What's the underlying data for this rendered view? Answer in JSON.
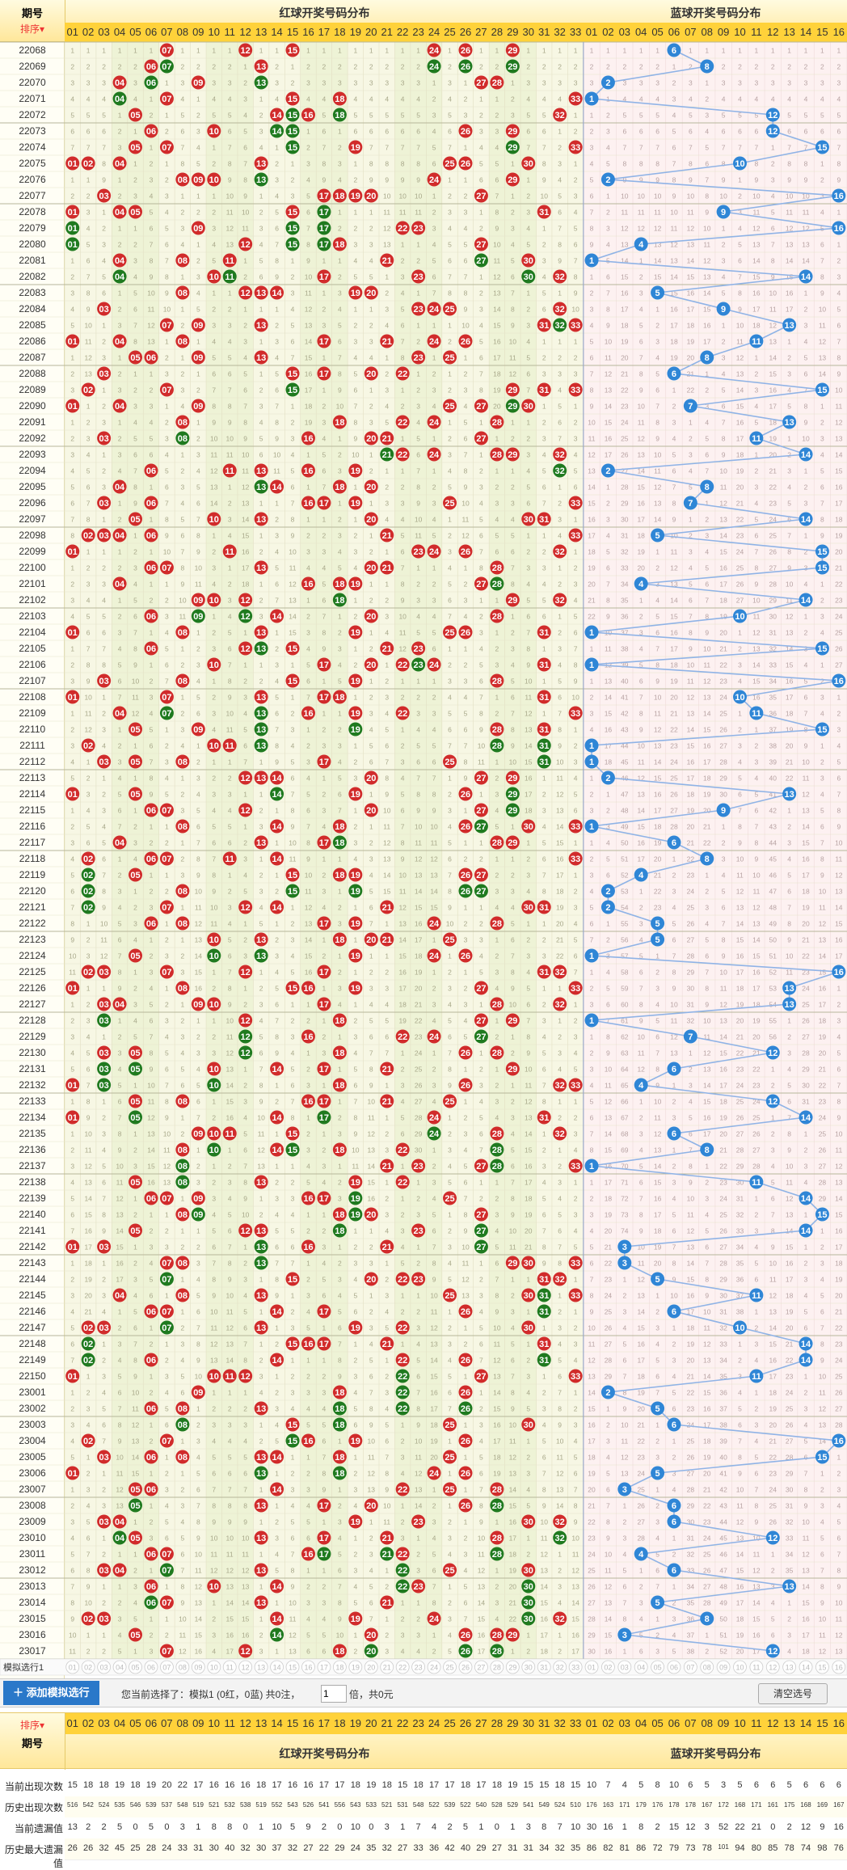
{
  "header": {
    "period_label": "期号",
    "sort_label": "排序",
    "red_title": "红球开奖号码分布",
    "blue_title": "蓝球开奖号码分布"
  },
  "red_numbers": [
    "01",
    "02",
    "03",
    "04",
    "05",
    "06",
    "07",
    "08",
    "09",
    "10",
    "11",
    "12",
    "13",
    "14",
    "15",
    "16",
    "17",
    "18",
    "19",
    "20",
    "21",
    "22",
    "23",
    "24",
    "25",
    "26",
    "27",
    "28",
    "29",
    "30",
    "31",
    "32",
    "33"
  ],
  "blue_numbers": [
    "01",
    "02",
    "03",
    "04",
    "05",
    "06",
    "07",
    "08",
    "09",
    "10",
    "11",
    "12",
    "13",
    "14",
    "15",
    "16"
  ],
  "colors": {
    "red_ball": "#d12b2b",
    "green_ball": "#1f7a1f",
    "blue_ball": "#2f86d6",
    "header_yellow": "#ffd23a"
  },
  "draws": [
    {
      "p": "22068",
      "r": [
        7,
        12,
        15,
        24,
        26,
        29
      ],
      "b": 6
    },
    {
      "p": "22069",
      "r": [
        6,
        7,
        13,
        24,
        26,
        29
      ],
      "b": 8
    },
    {
      "p": "22070",
      "r": [
        4,
        6,
        9,
        13,
        27,
        28
      ],
      "b": 2
    },
    {
      "p": "22071",
      "r": [
        4,
        7,
        15,
        18,
        33
      ],
      "b": 1
    },
    {
      "p": "22072",
      "r": [
        5,
        14,
        15,
        16,
        18,
        32
      ],
      "b": 12
    },
    {
      "p": "22073",
      "r": [
        6,
        10,
        14,
        15,
        26,
        29
      ],
      "b": 12
    },
    {
      "p": "22074",
      "r": [
        5,
        7,
        15,
        19,
        29,
        33
      ],
      "b": 15
    },
    {
      "p": "22075",
      "r": [
        1,
        2,
        4,
        13,
        25,
        26,
        30
      ],
      "b": 10
    },
    {
      "p": "22076",
      "r": [
        8,
        9,
        10,
        13,
        24,
        29
      ],
      "b": 2
    },
    {
      "p": "22077",
      "r": [
        3,
        17,
        18,
        19,
        20,
        27
      ],
      "b": 16
    },
    {
      "p": "22078",
      "r": [
        1,
        4,
        5,
        15,
        17,
        31
      ],
      "b": 9
    },
    {
      "p": "22079",
      "r": [
        1,
        9,
        15,
        17,
        22,
        23
      ],
      "b": 16
    },
    {
      "p": "22080",
      "r": [
        1,
        12,
        15,
        17,
        18,
        27
      ],
      "b": 4
    },
    {
      "p": "22081",
      "r": [
        4,
        8,
        11,
        21,
        27,
        30
      ],
      "b": 1
    },
    {
      "p": "22082",
      "r": [
        4,
        10,
        11,
        17,
        23,
        30,
        32
      ],
      "b": 14
    },
    {
      "p": "22083",
      "r": [
        8,
        12,
        13,
        14,
        19,
        20
      ],
      "b": 5
    },
    {
      "p": "22084",
      "r": [
        3,
        23,
        24,
        25,
        32
      ],
      "b": 9
    },
    {
      "p": "22085",
      "r": [
        7,
        9,
        13,
        31,
        32,
        33
      ],
      "b": 13
    },
    {
      "p": "22086",
      "r": [
        1,
        4,
        8,
        17,
        21,
        24,
        26
      ],
      "b": 11
    },
    {
      "p": "22087",
      "r": [
        5,
        6,
        9,
        13,
        23,
        25
      ],
      "b": 8
    },
    {
      "p": "22088",
      "r": [
        3,
        15,
        17,
        20,
        22
      ],
      "b": 6
    },
    {
      "p": "22089",
      "r": [
        2,
        7,
        15,
        29,
        31,
        33
      ],
      "b": 15
    },
    {
      "p": "22090",
      "r": [
        1,
        4,
        9,
        25,
        27,
        29,
        30
      ],
      "b": 7
    },
    {
      "p": "22091",
      "r": [
        8,
        18,
        22,
        24,
        28
      ],
      "b": 13
    },
    {
      "p": "22092",
      "r": [
        3,
        8,
        16,
        20,
        21,
        27
      ],
      "b": 11
    },
    {
      "p": "22093",
      "r": [
        21,
        22,
        24,
        28,
        29,
        32
      ],
      "b": 14
    },
    {
      "p": "22094",
      "r": [
        6,
        11,
        13,
        16,
        19,
        32
      ],
      "b": 2
    },
    {
      "p": "22095",
      "r": [
        4,
        13,
        14,
        18,
        20
      ],
      "b": 8
    },
    {
      "p": "22096",
      "r": [
        3,
        6,
        16,
        17,
        19,
        25,
        33
      ],
      "b": 7
    },
    {
      "p": "22097",
      "r": [
        5,
        10,
        13,
        20,
        30,
        31
      ],
      "b": 14
    },
    {
      "p": "22098",
      "r": [
        2,
        3,
        4,
        6,
        21,
        33
      ],
      "b": 5
    },
    {
      "p": "22099",
      "r": [
        1,
        11,
        23,
        24,
        26,
        32
      ],
      "b": 15
    },
    {
      "p": "22100",
      "r": [
        6,
        7,
        13,
        20,
        21,
        28
      ],
      "b": 15
    },
    {
      "p": "22101",
      "r": [
        4,
        16,
        18,
        19,
        27,
        28
      ],
      "b": 4
    },
    {
      "p": "22102",
      "r": [
        9,
        10,
        12,
        18,
        29,
        32
      ],
      "b": 14
    },
    {
      "p": "22103",
      "r": [
        6,
        9,
        12,
        14,
        20,
        28
      ],
      "b": 10
    },
    {
      "p": "22104",
      "r": [
        1,
        8,
        13,
        19,
        25,
        26,
        31
      ],
      "b": 1
    },
    {
      "p": "22105",
      "r": [
        6,
        12,
        13,
        15,
        21,
        23
      ],
      "b": 15
    },
    {
      "p": "22106",
      "r": [
        10,
        17,
        20,
        22,
        23,
        24,
        31
      ],
      "b": 1
    },
    {
      "p": "22107",
      "r": [
        3,
        8,
        15,
        19,
        28
      ],
      "b": 16
    },
    {
      "p": "22108",
      "r": [
        1,
        7,
        13,
        17,
        18,
        31
      ],
      "b": 10
    },
    {
      "p": "22109",
      "r": [
        4,
        7,
        13,
        16,
        19,
        22,
        33
      ],
      "b": 11
    },
    {
      "p": "22110",
      "r": [
        5,
        9,
        13,
        19,
        28,
        31
      ],
      "b": 15
    },
    {
      "p": "22111",
      "r": [
        2,
        10,
        11,
        13,
        28,
        31
      ],
      "b": 1
    },
    {
      "p": "22112",
      "r": [
        3,
        5,
        8,
        17,
        25,
        31
      ],
      "b": 1
    },
    {
      "p": "22113",
      "r": [
        12,
        13,
        14,
        20,
        27,
        29
      ],
      "b": 2
    },
    {
      "p": "22114",
      "r": [
        1,
        5,
        14,
        19,
        26,
        29
      ],
      "b": 13
    },
    {
      "p": "22115",
      "r": [
        6,
        7,
        12,
        20,
        27,
        29
      ],
      "b": 9
    },
    {
      "p": "22116",
      "r": [
        8,
        14,
        18,
        26,
        27,
        30,
        33
      ],
      "b": 1
    },
    {
      "p": "22117",
      "r": [
        4,
        13,
        17,
        18,
        28,
        29
      ],
      "b": 6
    },
    {
      "p": "22118",
      "r": [
        2,
        6,
        7,
        11,
        14,
        33
      ],
      "b": 8
    },
    {
      "p": "22119",
      "r": [
        2,
        5,
        15,
        18,
        19,
        26,
        27
      ],
      "b": 4
    },
    {
      "p": "22120",
      "r": [
        2,
        8,
        15,
        19,
        26,
        27
      ],
      "b": 2
    },
    {
      "p": "22121",
      "r": [
        2,
        7,
        12,
        14,
        21,
        30,
        31
      ],
      "b": 2
    },
    {
      "p": "22122",
      "r": [
        6,
        8,
        17,
        19,
        24,
        28
      ],
      "b": 5
    },
    {
      "p": "22123",
      "r": [
        10,
        13,
        18,
        20,
        21,
        25
      ],
      "b": 5
    },
    {
      "p": "22124",
      "r": [
        5,
        10,
        13,
        19,
        24,
        26
      ],
      "b": 1
    },
    {
      "p": "22125",
      "r": [
        2,
        3,
        7,
        12,
        17,
        31,
        32
      ],
      "b": 16
    },
    {
      "p": "22126",
      "r": [
        1,
        8,
        15,
        16,
        19,
        27,
        33
      ],
      "b": 13
    },
    {
      "p": "22127",
      "r": [
        3,
        4,
        9,
        10,
        17,
        28,
        32
      ],
      "b": 13
    },
    {
      "p": "22128",
      "r": [
        3,
        12,
        18,
        27,
        29
      ],
      "b": 1
    },
    {
      "p": "22129",
      "r": [
        12,
        16,
        22,
        24,
        27
      ],
      "b": 7
    },
    {
      "p": "22130",
      "r": [
        3,
        5,
        12,
        18,
        26,
        28
      ],
      "b": 12
    },
    {
      "p": "22131",
      "r": [
        3,
        5,
        10,
        14,
        17,
        21,
        29
      ],
      "b": 6
    },
    {
      "p": "22132",
      "r": [
        1,
        3,
        10,
        18,
        26,
        32,
        33
      ],
      "b": 4
    },
    {
      "p": "22133",
      "r": [
        5,
        8,
        16,
        17,
        21,
        25
      ],
      "b": 12
    },
    {
      "p": "22134",
      "r": [
        1,
        5,
        14,
        17,
        24,
        31
      ],
      "b": 14
    },
    {
      "p": "22135",
      "r": [
        9,
        10,
        11,
        15,
        24,
        28,
        32
      ],
      "b": 6
    },
    {
      "p": "22136",
      "r": [
        8,
        10,
        14,
        15,
        18,
        22,
        28
      ],
      "b": 8
    },
    {
      "p": "22137",
      "r": [
        8,
        21,
        23,
        27,
        28,
        33
      ],
      "b": 1
    },
    {
      "p": "22138",
      "r": [
        5,
        8,
        13,
        19,
        22
      ],
      "b": 11
    },
    {
      "p": "22139",
      "r": [
        6,
        7,
        9,
        16,
        17,
        19,
        25
      ],
      "b": 14
    },
    {
      "p": "22140",
      "r": [
        8,
        9,
        18,
        19,
        20,
        27
      ],
      "b": 15
    },
    {
      "p": "22141",
      "r": [
        5,
        12,
        13,
        18,
        23,
        27
      ],
      "b": 14
    },
    {
      "p": "22142",
      "r": [
        1,
        3,
        13,
        16,
        21,
        27
      ],
      "b": 3
    },
    {
      "p": "22143",
      "r": [
        7,
        8,
        13,
        29,
        30,
        33
      ],
      "b": 3
    },
    {
      "p": "22144",
      "r": [
        7,
        15,
        20,
        22,
        23,
        31,
        32
      ],
      "b": 5
    },
    {
      "p": "22145",
      "r": [
        4,
        8,
        13,
        25,
        30,
        31,
        33
      ],
      "b": 11
    },
    {
      "p": "22146",
      "r": [
        6,
        7,
        14,
        17,
        26,
        31
      ],
      "b": 6
    },
    {
      "p": "22147",
      "r": [
        2,
        3,
        7,
        13,
        19,
        22,
        30
      ],
      "b": 10
    },
    {
      "p": "22148",
      "r": [
        2,
        15,
        16,
        17,
        21,
        31
      ],
      "b": 14
    },
    {
      "p": "22149",
      "r": [
        2,
        6,
        14,
        22,
        26,
        31
      ],
      "b": 14
    },
    {
      "p": "22150",
      "r": [
        1,
        10,
        11,
        12,
        22,
        27,
        33
      ],
      "b": 11
    },
    {
      "p": "23001",
      "r": [
        9,
        18,
        22,
        26
      ],
      "b": 2
    },
    {
      "p": "23002",
      "r": [
        6,
        8,
        13,
        18,
        22,
        26
      ],
      "b": 5
    },
    {
      "p": "23003",
      "r": [
        8,
        15,
        18,
        25,
        30
      ],
      "b": 6
    },
    {
      "p": "23004",
      "r": [
        2,
        7,
        15,
        16,
        19,
        26
      ],
      "b": 16
    },
    {
      "p": "23005",
      "r": [
        3,
        6,
        8,
        13,
        14,
        18,
        25
      ],
      "b": 15
    },
    {
      "p": "23006",
      "r": [
        1,
        13,
        18,
        24,
        26
      ],
      "b": 5
    },
    {
      "p": "23007",
      "r": [
        5,
        6,
        14,
        22,
        25,
        28
      ],
      "b": 3
    },
    {
      "p": "23008",
      "r": [
        5,
        13,
        17,
        20,
        26,
        28
      ],
      "b": 6
    },
    {
      "p": "23009",
      "r": [
        3,
        4,
        19,
        23,
        30,
        32
      ],
      "b": 6
    },
    {
      "p": "23010",
      "r": [
        4,
        5,
        13,
        17,
        21,
        28,
        32
      ],
      "b": 12
    },
    {
      "p": "23011",
      "r": [
        6,
        7,
        16,
        17,
        21,
        22,
        28
      ],
      "b": 4
    },
    {
      "p": "23012",
      "r": [
        3,
        4,
        7,
        13,
        22,
        25,
        30
      ],
      "b": 6
    },
    {
      "p": "23013",
      "r": [
        6,
        10,
        14,
        22,
        23,
        30
      ],
      "b": 13
    },
    {
      "p": "23014",
      "r": [
        6,
        7,
        13,
        21,
        30
      ],
      "b": 5
    },
    {
      "p": "23015",
      "r": [
        2,
        3,
        14,
        19,
        24,
        30,
        32
      ],
      "b": 8
    },
    {
      "p": "23016",
      "r": [
        5,
        14,
        20,
        26,
        28,
        29
      ],
      "b": 3
    },
    {
      "p": "23017",
      "r": [
        7,
        12,
        18,
        20,
        26,
        28
      ],
      "b": 12
    }
  ],
  "sim_row": {
    "label": "模拟选行1"
  },
  "toolbar": {
    "add_button": "添加模拟选行",
    "selection_prefix": "您当前选择了：模拟1 (0红，0蓝) 共0注，",
    "multiplier": "1",
    "selection_suffix": "倍，共0元",
    "clear_button": "清空选号"
  },
  "footer": {
    "sort_label": "排序",
    "period_label": "期号",
    "red_title": "红球开奖号码分布",
    "blue_title": "蓝球开奖号码分布"
  },
  "stats": {
    "labels": [
      "当前出现次数",
      "历史出现次数",
      "当前遗漏值",
      "历史最大遗漏值"
    ],
    "red_rows": [
      [
        "15",
        "18",
        "18",
        "19",
        "18",
        "19",
        "20",
        "22",
        "17",
        "16",
        "16",
        "16",
        "18",
        "17",
        "16",
        "16",
        "17",
        "17",
        "18",
        "19",
        "18",
        "15",
        "18",
        "17",
        "17",
        "18",
        "17",
        "18",
        "19",
        "15",
        "15",
        "18",
        "15"
      ],
      [
        "516",
        "542",
        "524",
        "535",
        "546",
        "539",
        "537",
        "548",
        "519",
        "521",
        "532",
        "538",
        "519",
        "552",
        "543",
        "526",
        "541",
        "556",
        "543",
        "533",
        "521",
        "531",
        "548",
        "522",
        "539",
        "522",
        "540",
        "528",
        "529",
        "541",
        "549",
        "524",
        "510"
      ],
      [
        "13",
        "2",
        "2",
        "5",
        "0",
        "5",
        "0",
        "3",
        "1",
        "8",
        "8",
        "0",
        "1",
        "10",
        "5",
        "9",
        "2",
        "0",
        "10",
        "0",
        "3",
        "1",
        "7",
        "4",
        "2",
        "5",
        "1",
        "0",
        "1",
        "3",
        "8",
        "7",
        "10"
      ],
      [
        "26",
        "26",
        "32",
        "45",
        "25",
        "28",
        "24",
        "33",
        "31",
        "30",
        "40",
        "32",
        "30",
        "37",
        "32",
        "27",
        "22",
        "29",
        "24",
        "35",
        "32",
        "27",
        "33",
        "36",
        "42",
        "40",
        "29",
        "27",
        "31",
        "31",
        "34",
        "32",
        "35"
      ]
    ],
    "blue_rows": [
      [
        "10",
        "7",
        "4",
        "5",
        "8",
        "10",
        "6",
        "5",
        "3",
        "5",
        "6",
        "6",
        "5",
        "6",
        "6",
        "6"
      ],
      [
        "176",
        "163",
        "171",
        "179",
        "176",
        "178",
        "178",
        "167",
        "172",
        "168",
        "171",
        "161",
        "175",
        "168",
        "169",
        "167"
      ],
      [
        "30",
        "16",
        "1",
        "8",
        "2",
        "15",
        "12",
        "3",
        "52",
        "22",
        "21",
        "0",
        "2",
        "12",
        "9",
        "16"
      ],
      [
        "86",
        "82",
        "81",
        "86",
        "72",
        "79",
        "73",
        "78",
        "101",
        "94",
        "80",
        "85",
        "78",
        "74",
        "98",
        "76"
      ]
    ]
  }
}
